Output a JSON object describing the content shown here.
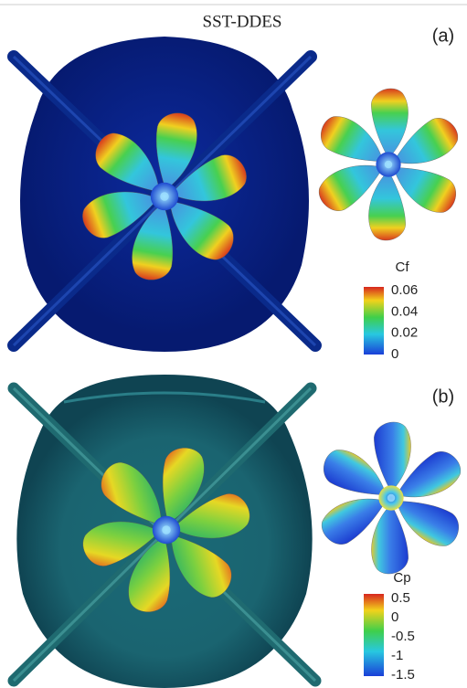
{
  "header": {
    "title": "SST-DDES"
  },
  "panels": [
    {
      "label": "(a)",
      "colorbar": {
        "title": "Cf",
        "ticks": [
          "0.06",
          "0.04",
          "0.02",
          "0"
        ]
      }
    },
    {
      "label": "(b)",
      "colorbar": {
        "title": "Cp",
        "ticks": [
          "0.5",
          "0",
          "-0.5",
          "-1",
          "-1.5"
        ]
      }
    }
  ]
}
